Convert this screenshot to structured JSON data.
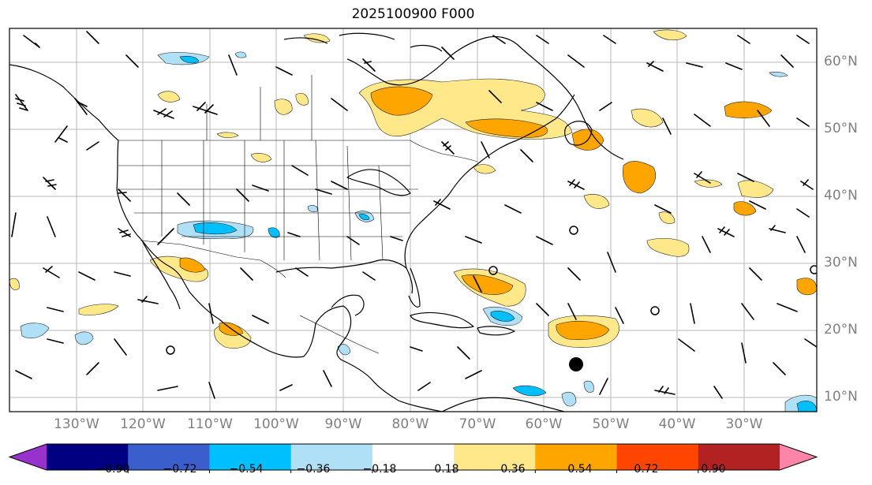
{
  "title": "2025100900 F000",
  "lat_labels": [
    "60°N",
    "50°N",
    "40°N",
    "30°N",
    "20°N",
    "10°N"
  ],
  "lon_labels": [
    "130°W",
    "120°W",
    "110°W",
    "100°W",
    "90°W",
    "80°W",
    "70°W",
    "60°W",
    "50°W",
    "40°W",
    "30°W"
  ],
  "colorbar": {
    "ticks": [
      "−0.90",
      "−0.72",
      "−0.54",
      "−0.36",
      "−0.18",
      "0.18",
      "0.36",
      "0.54",
      "0.72",
      "0.90"
    ],
    "colors": [
      "#9932cc",
      "#000080",
      "#3a5fcd",
      "#00bfff",
      "#b0e0f5",
      "#ffffff",
      "#ffe88a",
      "#ffa500",
      "#ff4500",
      "#b22222",
      "#ff85a8"
    ]
  },
  "legend_colors": {
    "neg_light": "#b0e0f5",
    "neg_mid": "#00bfff",
    "pos_light": "#ffe88a",
    "pos_mid": "#ffa500",
    "pos_strong": "#ff4500"
  },
  "map": {
    "projection": "PlateCarree",
    "extent_lon": [
      -138,
      -17
    ],
    "extent_lat": [
      8,
      65
    ]
  }
}
